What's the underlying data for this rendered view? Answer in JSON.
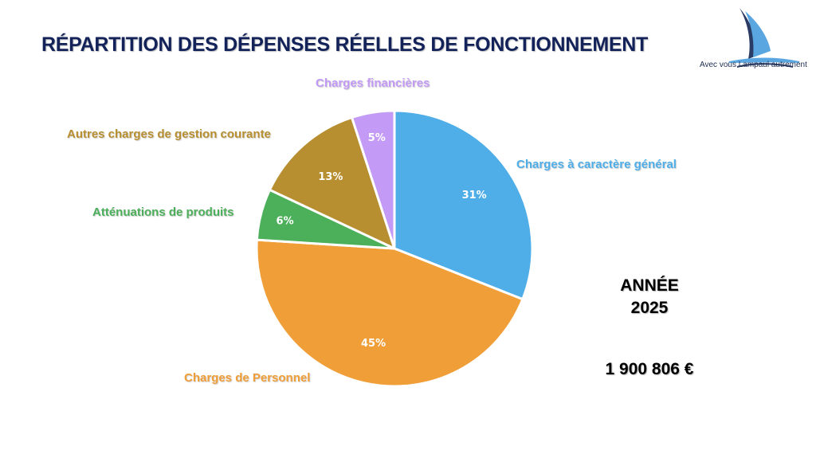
{
  "title": "RÉPARTITION DES DÉPENSES RÉELLES DE FONCTIONNEMENT",
  "logo": {
    "text": "Avec vous Lampaul autrement",
    "icon": "sailboat-icon"
  },
  "side": {
    "year_label": "ANNÉE",
    "year": "2025",
    "total": "1 900 806 €"
  },
  "chart_data": {
    "type": "pie",
    "title": "RÉPARTITION DES DÉPENSES RÉELLES DE FONCTIONNEMENT",
    "start": "12 o'clock, clockwise",
    "slices": [
      {
        "label": "Charges à caractère général",
        "value": 31,
        "text": "31%",
        "color": "#4faee8"
      },
      {
        "label": "Charges de Personnel",
        "value": 45,
        "text": "45%",
        "color": "#f09e38"
      },
      {
        "label": "Atténuations de produits",
        "value": 6,
        "text": "6%",
        "color": "#4caf5a"
      },
      {
        "label": "Autres charges de gestion courante",
        "value": 13,
        "text": "13%",
        "color": "#b78f31"
      },
      {
        "label": "Charges financières",
        "value": 5,
        "text": "5%",
        "color": "#c39af5"
      }
    ]
  }
}
